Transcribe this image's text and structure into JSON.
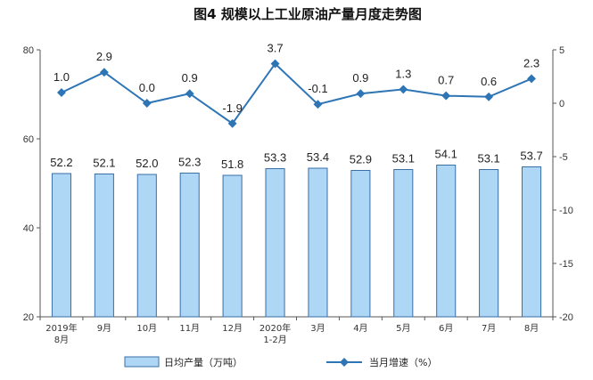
{
  "chart_data": {
    "type": "bar+line",
    "title": "图4  规模以上工业原油产量月度走势图",
    "categories": [
      [
        "2019年",
        "8月"
      ],
      [
        "9月"
      ],
      [
        "10月"
      ],
      [
        "11月"
      ],
      [
        "12月"
      ],
      [
        "2020年",
        "1-2月"
      ],
      [
        "3月"
      ],
      [
        "4月"
      ],
      [
        "5月"
      ],
      [
        "6月"
      ],
      [
        "7月"
      ],
      [
        "8月"
      ]
    ],
    "series": [
      {
        "name": "日均产量（万吨）",
        "type": "bar",
        "axis": "left",
        "color": "#aed6f5",
        "values": [
          52.2,
          52.1,
          52.0,
          52.3,
          51.8,
          53.3,
          53.4,
          52.9,
          53.1,
          54.1,
          53.1,
          53.7
        ],
        "labels": [
          "52.2",
          "52.1",
          "52.0",
          "52.3",
          "51.8",
          "53.3",
          "53.4",
          "52.9",
          "53.1",
          "54.1",
          "53.1",
          "53.7"
        ]
      },
      {
        "name": "当月增速（%）",
        "type": "line",
        "axis": "right",
        "color": "#2e75b6",
        "values": [
          1.0,
          2.9,
          0.0,
          0.9,
          -1.9,
          3.7,
          -0.1,
          0.9,
          1.3,
          0.7,
          0.6,
          2.3
        ],
        "labels": [
          "1.0",
          "2.9",
          "0.0",
          "0.9",
          "-1.9",
          "3.7",
          "-0.1",
          "0.9",
          "1.3",
          "0.7",
          "0.6",
          "2.3"
        ]
      }
    ],
    "y_left": {
      "ylim": [
        20,
        80
      ],
      "ticks": [
        "20",
        "40",
        "60",
        "80"
      ]
    },
    "y_right": {
      "ylim": [
        -20,
        5
      ],
      "ticks": [
        "5",
        "0",
        "-5",
        "-10",
        "-15",
        "-20"
      ]
    },
    "grid": false,
    "legend_position": "bottom"
  }
}
